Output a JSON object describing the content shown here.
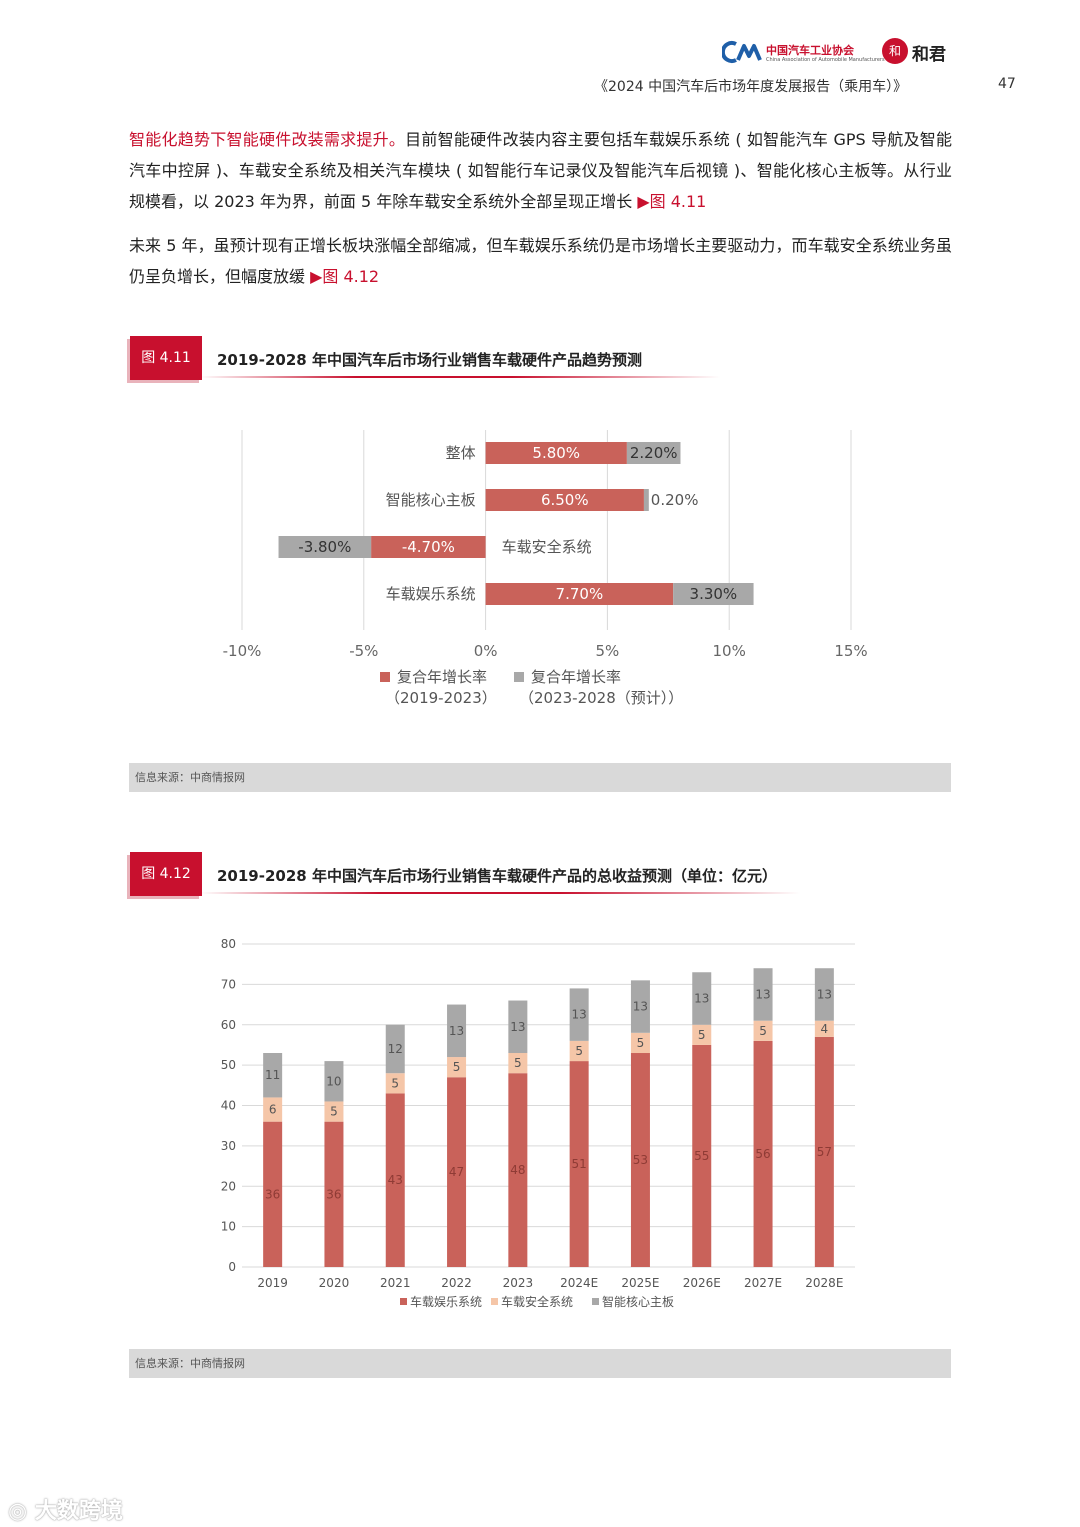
{
  "header": {
    "org_cn": "中国汽车工业协会",
    "org_en": "China Association of Automobile Manufacturers",
    "seal_char": "和",
    "brand2": "和君",
    "report_title": "《2024 中国汽车后市场年度发展报告（乘用车）》",
    "page_number": "47"
  },
  "paragraph1": {
    "highlight": "智能化趋势下智能硬件改装需求提升。",
    "text": "目前智能硬件改装内容主要包括车载娱乐系统 ( 如智能汽车 GPS 导航及智能汽车中控屏 )、车载安全系统及相关汽车模块 ( 如智能行车记录仪及智能汽车后视镜 )、智能化核心主板等。从行业规模看，以 2023 年为界，前面 5 年除车载安全系统外全部呈现正增长 ",
    "ref": "▶图 4.11"
  },
  "paragraph2": {
    "text": "未来 5 年，虽预计现有正增长板块涨幅全部缩减，但车载娱乐系统仍是市场增长主要驱动力，而车载安全系统业务虽仍呈负增长，但幅度放缓 ",
    "ref": "▶图 4.12"
  },
  "figure1": {
    "tab": "图 4.11",
    "title": "2019-2028 年中国汽车后市场行业销售车载硬件产品趋势预测",
    "source": "信息来源：中商情报网"
  },
  "figure2": {
    "tab": "图 4.12",
    "title": "2019-2028 年中国汽车后市场行业销售车载硬件产品的总收益预测（单位：亿元）",
    "source": "信息来源：中商情报网"
  },
  "chart_data": [
    {
      "type": "bar",
      "orientation": "horizontal",
      "stacked": true,
      "categories": [
        "整体",
        "智能核心主板",
        "车载安全系统",
        "车载娱乐系统"
      ],
      "series": [
        {
          "name": "复合年增长率（2019-2023）",
          "values": [
            5.8,
            6.5,
            -4.7,
            7.7
          ],
          "labels": [
            "5.80%",
            "6.50%",
            "-4.70%",
            "7.70%"
          ],
          "color": "#c9625a"
        },
        {
          "name": "复合年增长率（2023-2028（预计））",
          "values": [
            2.2,
            0.2,
            -3.8,
            3.3
          ],
          "labels": [
            "2.20%",
            "0.20%",
            "-3.80%",
            "3.30%"
          ],
          "color": "#a8a8a8"
        }
      ],
      "legend_lines": [
        [
          "复合年增长率",
          "（2019-2023）"
        ],
        [
          "复合年增长率",
          "（2023-2028（预计））"
        ]
      ],
      "xticks": [
        "-10%",
        "-5%",
        "0%",
        "5%",
        "10%",
        "15%"
      ],
      "xlim": [
        -10,
        15
      ],
      "grid": true,
      "legend_position": "bottom"
    },
    {
      "type": "bar",
      "stacked": true,
      "categories": [
        "2019",
        "2020",
        "2021",
        "2022",
        "2023",
        "2024E",
        "2025E",
        "2026E",
        "2027E",
        "2028E"
      ],
      "series": [
        {
          "name": "车载娱乐系统",
          "values": [
            36,
            36,
            43,
            47,
            48,
            51,
            53,
            55,
            56,
            57
          ],
          "color": "#c9625a"
        },
        {
          "name": "车载安全系统",
          "values": [
            6,
            5,
            5,
            5,
            5,
            5,
            5,
            5,
            5,
            4
          ],
          "color": "#f5c6a8"
        },
        {
          "name": "智能核心主板",
          "values": [
            11,
            10,
            12,
            13,
            13,
            13,
            13,
            13,
            13,
            13
          ],
          "color": "#a8a8a8"
        }
      ],
      "yticks": [
        "0",
        "10",
        "20",
        "30",
        "40",
        "50",
        "60",
        "70",
        "80"
      ],
      "ylim": [
        0,
        80
      ],
      "grid": true,
      "legend_position": "bottom"
    }
  ],
  "watermark": "大数跨境"
}
